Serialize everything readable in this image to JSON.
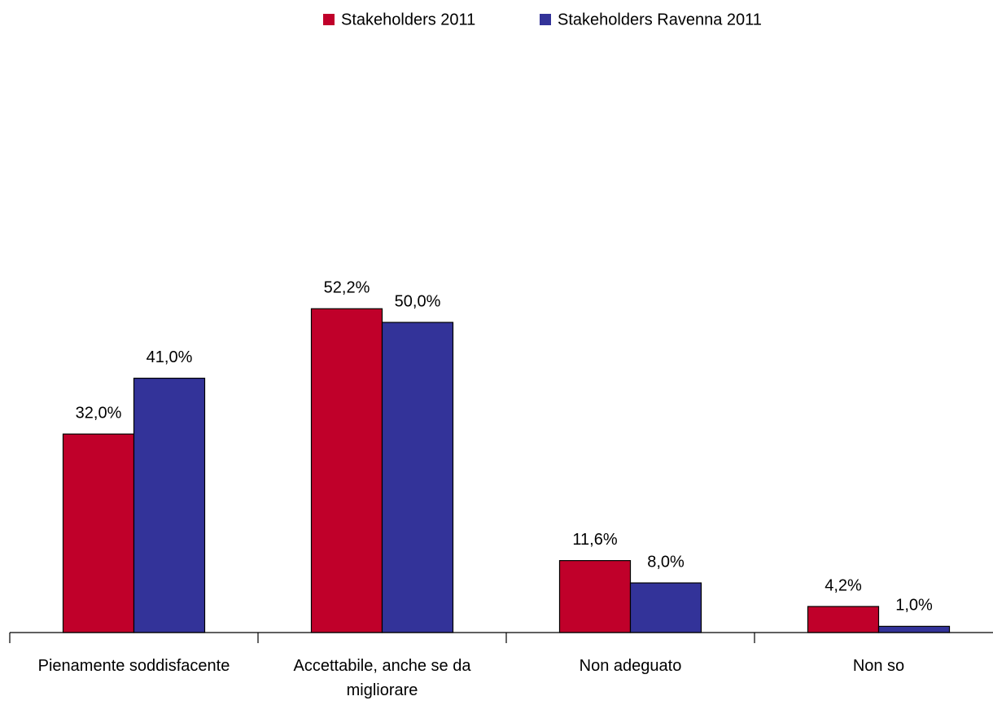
{
  "chart_data": {
    "type": "bar",
    "categories": [
      "Pienamente soddisfacente",
      "Accettabile, anche se da migliorare",
      "Non adeguato",
      "Non so"
    ],
    "series": [
      {
        "name": "Stakeholders 2011",
        "color": "#c0002a",
        "values": [
          32.0,
          52.2,
          11.6,
          4.2
        ],
        "value_labels": [
          "32,0%",
          "52,2%",
          "11,6%",
          "4,2%"
        ]
      },
      {
        "name": "Stakeholders Ravenna 2011",
        "color": "#333399",
        "values": [
          41.0,
          50.0,
          8.0,
          1.0
        ],
        "value_labels": [
          "41,0%",
          "50,0%",
          "8,0%",
          "1,0%"
        ]
      }
    ],
    "legend": "top"
  }
}
